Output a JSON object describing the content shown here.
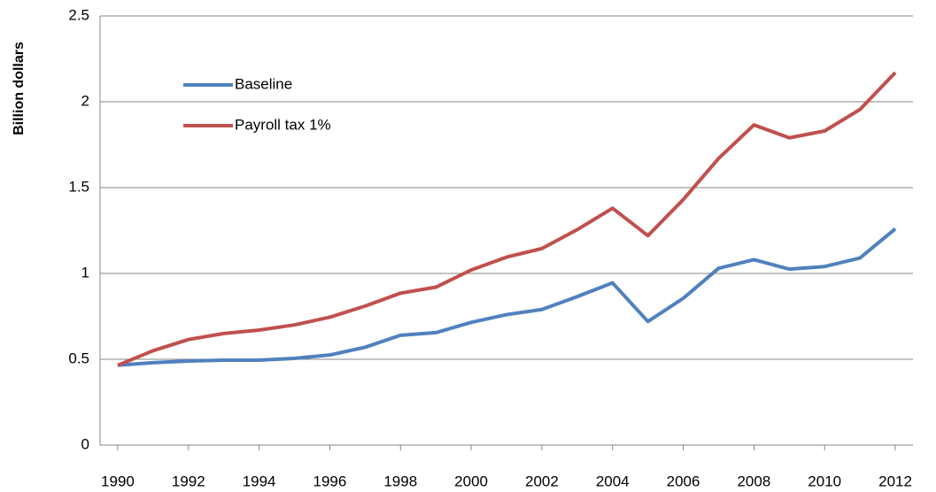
{
  "chart_data": {
    "type": "line",
    "y_label": "Billion dollars",
    "x": [
      1990,
      1991,
      1992,
      1993,
      1994,
      1995,
      1996,
      1997,
      1998,
      1999,
      2000,
      2001,
      2002,
      2003,
      2004,
      2005,
      2006,
      2007,
      2008,
      2009,
      2010,
      2011,
      2012
    ],
    "series": [
      {
        "name": "Baseline",
        "color": "#4f81bd",
        "values": [
          0.465,
          0.48,
          0.49,
          0.495,
          0.495,
          0.505,
          0.525,
          0.57,
          0.64,
          0.655,
          0.715,
          0.76,
          0.79,
          0.865,
          0.945,
          0.72,
          0.855,
          1.03,
          1.08,
          1.025,
          1.04,
          1.09,
          1.26
        ]
      },
      {
        "name": "Payroll tax 1%",
        "color": "#c0504d",
        "values": [
          0.465,
          0.55,
          0.615,
          0.65,
          0.67,
          0.7,
          0.745,
          0.81,
          0.885,
          0.92,
          1.02,
          1.095,
          1.145,
          1.255,
          1.38,
          1.22,
          1.43,
          1.67,
          1.865,
          1.79,
          1.83,
          1.955,
          2.17
        ]
      }
    ],
    "xlim": [
      1989.5,
      2012.5
    ],
    "xticks": [
      1990,
      1992,
      1994,
      1996,
      1998,
      2000,
      2002,
      2004,
      2006,
      2008,
      2010,
      2012
    ],
    "ylim": [
      0,
      2.5
    ],
    "yticks": [
      0,
      0.5,
      1,
      1.5,
      2,
      2.5
    ],
    "grid": true,
    "legend": "upper left"
  }
}
